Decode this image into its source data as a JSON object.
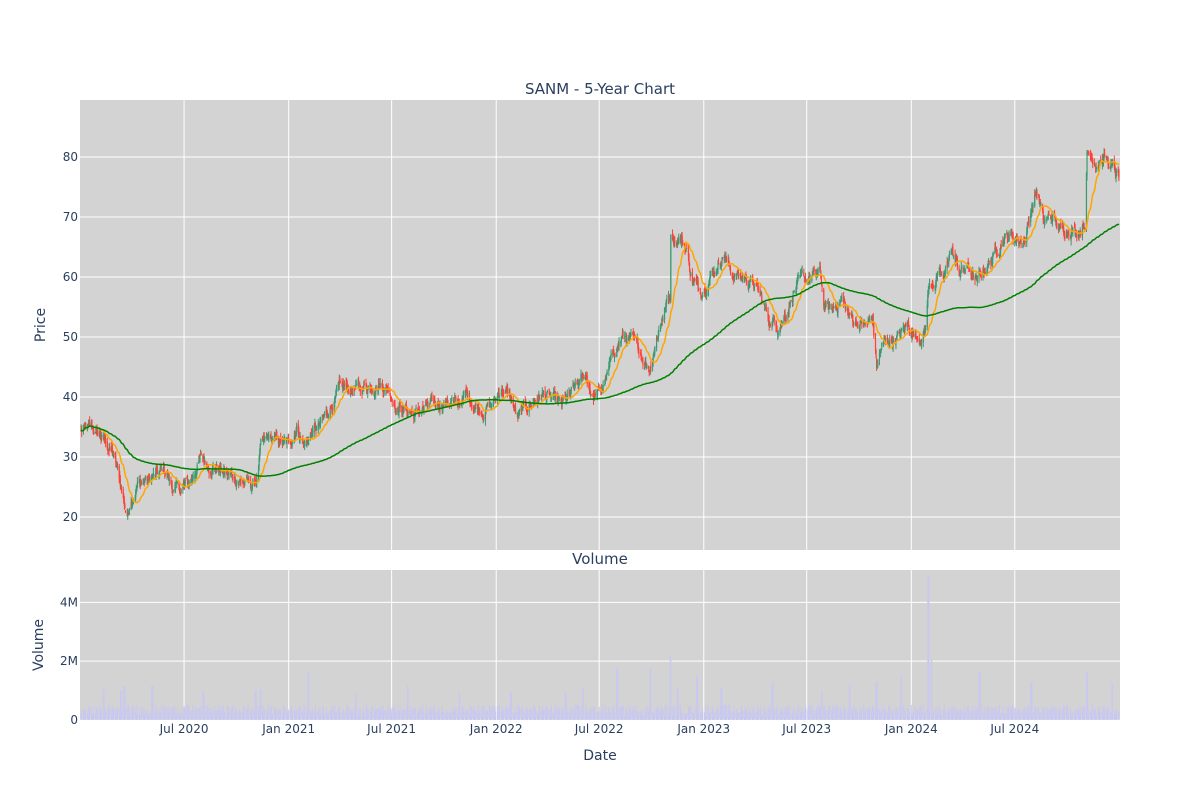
{
  "chart_data": [
    {
      "type": "candlestick",
      "title": "SANM - 5-Year Chart",
      "xlabel": "",
      "ylabel": "Price",
      "ylim": [
        14.5,
        89.5
      ],
      "yticks": [
        20,
        30,
        40,
        50,
        60,
        70,
        80
      ],
      "x_range": [
        "2020-01-02",
        "2024-12-31"
      ],
      "grid": true,
      "legend": "none",
      "colors": {
        "up": "#3d9970",
        "down": "#ff4136",
        "ma_short": "#ffa500",
        "ma_long": "#008000",
        "plot_bg": "#d3d3d3"
      },
      "close_anchors": [
        [
          "2020-01-02",
          34.3
        ],
        [
          "2020-01-20",
          34.6
        ],
        [
          "2020-02-05",
          33.5
        ],
        [
          "2020-02-20",
          31.5
        ],
        [
          "2020-02-28",
          30.2
        ],
        [
          "2020-03-10",
          26.0
        ],
        [
          "2020-03-23",
          20.0
        ],
        [
          "2020-03-27",
          22.5
        ],
        [
          "2020-04-10",
          25.5
        ],
        [
          "2020-04-28",
          26.2
        ],
        [
          "2020-05-15",
          27.0
        ],
        [
          "2020-05-29",
          27.8
        ],
        [
          "2020-06-10",
          24.8
        ],
        [
          "2020-06-25",
          24.5
        ],
        [
          "2020-07-10",
          25.8
        ],
        [
          "2020-07-31",
          29.8
        ],
        [
          "2020-08-15",
          28.5
        ],
        [
          "2020-09-01",
          28.0
        ],
        [
          "2020-09-15",
          27.0
        ],
        [
          "2020-10-01",
          26.5
        ],
        [
          "2020-10-28",
          25.0
        ],
        [
          "2020-11-06",
          26.5
        ],
        [
          "2020-11-13",
          31.5
        ],
        [
          "2020-11-25",
          33.0
        ],
        [
          "2020-12-15",
          32.5
        ],
        [
          "2021-01-01",
          32.0
        ],
        [
          "2021-01-15",
          35.0
        ],
        [
          "2021-01-29",
          32.0
        ],
        [
          "2021-02-15",
          34.5
        ],
        [
          "2021-02-26",
          35.0
        ],
        [
          "2021-03-15",
          38.5
        ],
        [
          "2021-03-31",
          41.0
        ],
        [
          "2021-04-15",
          41.5
        ],
        [
          "2021-05-01",
          41.0
        ],
        [
          "2021-05-20",
          42.0
        ],
        [
          "2021-06-10",
          42.3
        ],
        [
          "2021-06-25",
          41.5
        ],
        [
          "2021-07-10",
          38.5
        ],
        [
          "2021-07-26",
          38.0
        ],
        [
          "2021-08-10",
          37.0
        ],
        [
          "2021-08-25",
          38.0
        ],
        [
          "2021-09-10",
          38.5
        ],
        [
          "2021-09-25",
          39.0
        ],
        [
          "2021-10-10",
          39.5
        ],
        [
          "2021-10-25",
          38.5
        ],
        [
          "2021-11-08",
          40.5
        ],
        [
          "2021-11-25",
          38.5
        ],
        [
          "2021-12-10",
          38.0
        ],
        [
          "2021-12-28",
          39.0
        ],
        [
          "2022-01-10",
          41.5
        ],
        [
          "2022-01-25",
          40.0
        ],
        [
          "2022-02-08",
          36.5
        ],
        [
          "2022-02-24",
          38.5
        ],
        [
          "2022-03-10",
          39.5
        ],
        [
          "2022-03-25",
          40.5
        ],
        [
          "2022-04-10",
          39.5
        ],
        [
          "2022-04-28",
          38.5
        ],
        [
          "2022-05-10",
          40.0
        ],
        [
          "2022-05-25",
          42.0
        ],
        [
          "2022-06-08",
          43.5
        ],
        [
          "2022-06-20",
          40.0
        ],
        [
          "2022-07-05",
          41.0
        ],
        [
          "2022-07-15",
          43.5
        ],
        [
          "2022-07-29",
          48.0
        ],
        [
          "2022-08-10",
          50.0
        ],
        [
          "2022-08-25",
          49.5
        ],
        [
          "2022-09-10",
          47.5
        ],
        [
          "2022-09-28",
          45.0
        ],
        [
          "2022-10-10",
          50.0
        ],
        [
          "2022-10-25",
          55.0
        ],
        [
          "2022-11-03",
          57.0
        ],
        [
          "2022-11-04",
          67.0
        ],
        [
          "2022-11-20",
          66.5
        ],
        [
          "2022-12-01",
          65.0
        ],
        [
          "2022-12-10",
          60.0
        ],
        [
          "2022-12-25",
          57.5
        ],
        [
          "2023-01-10",
          60.0
        ],
        [
          "2023-01-25",
          62.0
        ],
        [
          "2023-02-05",
          64.0
        ],
        [
          "2023-02-20",
          60.5
        ],
        [
          "2023-03-10",
          60.0
        ],
        [
          "2023-03-25",
          59.5
        ],
        [
          "2023-04-10",
          57.0
        ],
        [
          "2023-04-25",
          53.0
        ],
        [
          "2023-05-10",
          52.0
        ],
        [
          "2023-05-25",
          54.0
        ],
        [
          "2023-06-10",
          58.0
        ],
        [
          "2023-06-25",
          59.5
        ],
        [
          "2023-07-10",
          60.0
        ],
        [
          "2023-07-25",
          60.5
        ],
        [
          "2023-08-01",
          55.0
        ],
        [
          "2023-08-15",
          54.5
        ],
        [
          "2023-08-31",
          56.5
        ],
        [
          "2023-09-15",
          53.0
        ],
        [
          "2023-09-30",
          52.5
        ],
        [
          "2023-10-15",
          52.0
        ],
        [
          "2023-10-25",
          53.0
        ],
        [
          "2023-11-01",
          45.0
        ],
        [
          "2023-11-10",
          48.5
        ],
        [
          "2023-11-25",
          49.5
        ],
        [
          "2023-12-10",
          50.0
        ],
        [
          "2023-12-25",
          52.0
        ],
        [
          "2024-01-10",
          50.0
        ],
        [
          "2024-01-25",
          51.0
        ],
        [
          "2024-01-31",
          58.0
        ],
        [
          "2024-02-15",
          60.0
        ],
        [
          "2024-02-28",
          59.5
        ],
        [
          "2024-03-10",
          65.0
        ],
        [
          "2024-03-25",
          61.0
        ],
        [
          "2024-04-10",
          61.5
        ],
        [
          "2024-04-25",
          59.0
        ],
        [
          "2024-05-10",
          61.5
        ],
        [
          "2024-05-25",
          63.5
        ],
        [
          "2024-06-10",
          66.5
        ],
        [
          "2024-06-25",
          67.0
        ],
        [
          "2024-07-10",
          66.0
        ],
        [
          "2024-07-20",
          66.5
        ],
        [
          "2024-07-31",
          72.0
        ],
        [
          "2024-08-10",
          74.5
        ],
        [
          "2024-08-20",
          69.0
        ],
        [
          "2024-09-05",
          70.0
        ],
        [
          "2024-09-20",
          67.5
        ],
        [
          "2024-10-05",
          68.5
        ],
        [
          "2024-10-20",
          67.5
        ],
        [
          "2024-11-01",
          69.5
        ],
        [
          "2024-11-05",
          80.5
        ],
        [
          "2024-11-20",
          79.5
        ],
        [
          "2024-12-05",
          80.0
        ],
        [
          "2024-12-20",
          78.0
        ],
        [
          "2024-12-31",
          76.5
        ]
      ],
      "ma_short_label": "",
      "ma_long_label": ""
    },
    {
      "type": "bar",
      "title": "Volume",
      "xlabel": "Date",
      "ylabel": "Volume",
      "ylim": [
        0,
        5100000
      ],
      "yticks": [
        0,
        2000000,
        4000000
      ],
      "ytick_labels": [
        "0",
        "2M",
        "4M"
      ],
      "xticks": [
        "2020-07-01",
        "2021-01-01",
        "2021-07-01",
        "2022-01-01",
        "2022-07-01",
        "2023-01-01",
        "2023-07-01",
        "2024-01-01",
        "2024-07-01"
      ],
      "xtick_labels": [
        "Jul 2020",
        "Jan 2021",
        "Jul 2021",
        "Jan 2022",
        "Jul 2022",
        "Jan 2023",
        "Jul 2023",
        "Jan 2024",
        "Jul 2024"
      ],
      "bar_color": "#c8c8f0",
      "base_volume": 400000,
      "spikes": [
        [
          "2020-02-10",
          1050000
        ],
        [
          "2020-03-12",
          1000000
        ],
        [
          "2020-03-18",
          1150000
        ],
        [
          "2020-05-06",
          1150000
        ],
        [
          "2020-08-04",
          950000
        ],
        [
          "2020-11-04",
          1000000
        ],
        [
          "2020-11-13",
          1050000
        ],
        [
          "2021-02-05",
          1650000
        ],
        [
          "2021-04-30",
          900000
        ],
        [
          "2021-07-30",
          1150000
        ],
        [
          "2021-10-29",
          950000
        ],
        [
          "2022-01-27",
          950000
        ],
        [
          "2022-05-03",
          950000
        ],
        [
          "2022-06-03",
          1100000
        ],
        [
          "2022-08-02",
          1750000
        ],
        [
          "2022-09-30",
          1750000
        ],
        [
          "2022-11-04",
          2150000
        ],
        [
          "2022-11-16",
          1050000
        ],
        [
          "2022-12-20",
          1500000
        ],
        [
          "2023-02-01",
          1100000
        ],
        [
          "2023-05-02",
          1250000
        ],
        [
          "2023-07-28",
          1000000
        ],
        [
          "2023-09-15",
          1200000
        ],
        [
          "2023-11-01",
          1300000
        ],
        [
          "2023-12-15",
          1550000
        ],
        [
          "2024-01-31",
          4850000
        ],
        [
          "2024-02-05",
          2050000
        ],
        [
          "2024-04-30",
          1650000
        ],
        [
          "2024-07-30",
          1300000
        ],
        [
          "2024-11-05",
          1600000
        ],
        [
          "2024-12-20",
          1250000
        ]
      ]
    }
  ]
}
